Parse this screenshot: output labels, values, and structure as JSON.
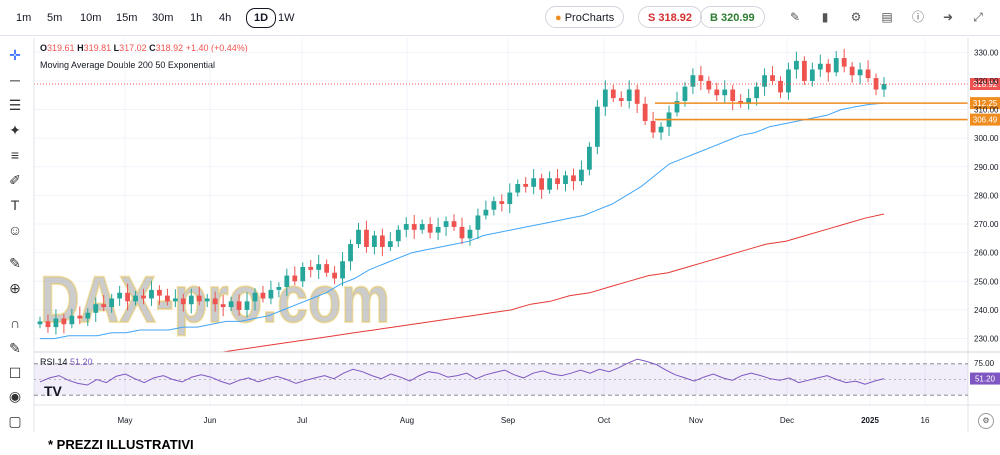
{
  "toolbar": {
    "timeframes": [
      "1m",
      "5m",
      "10m",
      "15m",
      "30m",
      "1h",
      "4h",
      "1D",
      "1W"
    ],
    "active_timeframe": "1D",
    "brand_label": "ProCharts",
    "sell_label": "S 318.92",
    "buy_label": "B 320.99",
    "sell_color": "#d32f2f",
    "buy_color": "#2e7d32",
    "icons": [
      "pencil-icon",
      "bar-chart-icon",
      "gear-icon",
      "indicators-icon",
      "alert-icon",
      "share-icon",
      "collapse-icon"
    ]
  },
  "sidebar": {
    "icons": [
      "crosshair-icon",
      "horizontal-line-icon",
      "text-lines-icon",
      "pattern-icon",
      "measure-lines-icon",
      "brush-icon",
      "text-tool-icon",
      "emoji-icon",
      "ruler-icon",
      "zoom-icon",
      "magnet-icon",
      "lock-draw-icon",
      "lock-icon",
      "eye-icon",
      "trash-icon"
    ]
  },
  "legend": {
    "o_label": "O",
    "o_value": "319.61",
    "h_label": "H",
    "h_value": "319.81",
    "l_label": "L",
    "l_value": "317.02",
    "c_label": "C",
    "c_value": "318.92",
    "change": "+1.40 (+0.44%)",
    "study": "Moving Average Double 200 50 Exponential"
  },
  "watermark": "DAX-pro.com",
  "footnote": "* PREZZI ILLUSTRATIVI",
  "chart_data": {
    "type": "candlestick",
    "y_ticks": [
      230,
      240,
      250,
      260,
      270,
      280,
      290,
      300,
      310,
      320,
      330
    ],
    "x_ticks": [
      "May",
      "Jun",
      "Jul",
      "Aug",
      "Sep",
      "Oct",
      "Nov",
      "Dec",
      "2025",
      "16"
    ],
    "ylim": [
      226,
      335
    ],
    "last_price": "318.92",
    "levels": [
      {
        "value": 312.25,
        "label": "312.25",
        "color": "#ef8c1f"
      },
      {
        "value": 306.49,
        "label": "306.49",
        "color": "#ef8c1f"
      }
    ],
    "price_series": [
      236,
      234,
      237,
      235,
      238,
      237,
      239,
      242,
      241,
      244,
      246,
      243,
      245,
      244,
      247,
      245,
      243,
      244,
      242,
      245,
      243,
      244,
      242,
      241,
      243,
      240,
      243,
      246,
      244,
      247,
      248,
      252,
      250,
      255,
      254,
      256,
      253,
      251,
      257,
      263,
      268,
      262,
      266,
      262,
      264,
      268,
      270,
      268,
      270,
      267,
      269,
      271,
      269,
      265,
      268,
      273,
      275,
      278,
      277,
      281,
      284,
      283,
      286,
      282,
      286,
      284,
      287,
      285,
      289,
      297,
      311,
      317,
      314,
      313,
      317,
      312,
      306,
      302,
      304,
      309,
      313,
      318,
      322,
      320,
      317,
      315,
      317,
      313,
      312,
      314,
      318,
      322,
      320,
      316,
      324,
      327,
      320,
      324,
      326,
      323,
      328,
      325,
      322,
      324,
      321,
      317,
      318.92
    ],
    "ema50": [
      230,
      230,
      231,
      231,
      231,
      232,
      232,
      233,
      233,
      233,
      234,
      234,
      235,
      236,
      236,
      237,
      238,
      240,
      242,
      244,
      246,
      249,
      251,
      254,
      256,
      258,
      260,
      261,
      262,
      263,
      264,
      266,
      267,
      268,
      269,
      270,
      271,
      272,
      273,
      275,
      277,
      280,
      283,
      287,
      291,
      293,
      295,
      297,
      299,
      301,
      302,
      304,
      305,
      306,
      307,
      308,
      310,
      311,
      311.8,
      312.25
    ],
    "ema200": [
      216,
      217,
      218,
      219,
      220,
      221,
      222,
      223,
      224,
      225,
      226,
      227,
      228,
      229,
      230,
      231,
      232,
      233,
      234,
      235,
      236,
      237,
      238,
      239,
      240,
      242,
      243,
      245,
      246,
      248,
      250,
      252,
      253,
      255,
      257,
      259,
      261,
      263,
      264,
      266,
      268,
      270,
      272,
      273.5
    ],
    "rsi": {
      "label": "RSI 14",
      "value": "51.20",
      "upper": "75.00",
      "ylim": [
        20,
        80
      ],
      "values": [
        47,
        52,
        55,
        49,
        45,
        43,
        50,
        46,
        54,
        57,
        51,
        46,
        52,
        55,
        50,
        47,
        53,
        56,
        53,
        48,
        44,
        49,
        52,
        47,
        51,
        54,
        50,
        45,
        49,
        52,
        55,
        51,
        58,
        63,
        60,
        55,
        51,
        57,
        53,
        48,
        55,
        60,
        58,
        53,
        55,
        58,
        51,
        56,
        59,
        62,
        56,
        52,
        58,
        61,
        57,
        55,
        58,
        62,
        58,
        63,
        60,
        65,
        71,
        76,
        73,
        69,
        62,
        56,
        52,
        48,
        53,
        57,
        52,
        49,
        55,
        58,
        55,
        51,
        49,
        52,
        46,
        49,
        52,
        55,
        50,
        46,
        48,
        44,
        48,
        51.2
      ]
    },
    "colors": {
      "up": "#26a69a",
      "down": "#ef5350",
      "ema50": "#42a5f5",
      "ema200": "#e53935",
      "rsi": "#7e57c2",
      "level": "#ef8c1f"
    }
  }
}
